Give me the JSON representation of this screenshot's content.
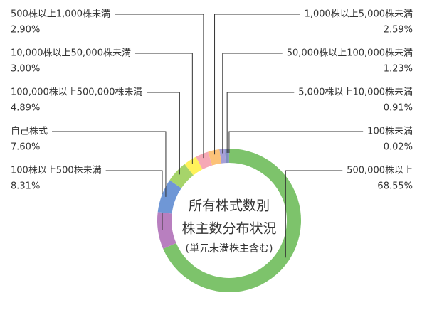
{
  "chart_data": {
    "type": "donut",
    "title": [
      "所有株式数別",
      "株主数分布状況",
      "(単元未満株主含む)"
    ],
    "categories": [
      "500,000株以上",
      "100株以上500株未満",
      "自己株式",
      "100,000株以上500,000株未満",
      "10,000株以上50,000株未満",
      "500株以上1,000株未満",
      "1,000株以上5,000株未満",
      "50,000株以上100,000株未満",
      "5,000株以上10,000株未満",
      "100株未満"
    ],
    "values": [
      68.55,
      8.31,
      7.6,
      4.89,
      3.0,
      2.9,
      2.59,
      1.23,
      0.91,
      0.02
    ],
    "value_labels": [
      "68.55%",
      "8.31%",
      "7.60%",
      "4.89%",
      "3.00%",
      "2.90%",
      "2.59%",
      "1.23%",
      "0.91%",
      "0.02%"
    ],
    "colors": [
      "#7dc36b",
      "#b87fbf",
      "#6f97d6",
      "#a6d46a",
      "#fff25a",
      "#f6a9b6",
      "#fcc278",
      "#a59fd8",
      "#7f8fc0",
      "#999999"
    ]
  }
}
